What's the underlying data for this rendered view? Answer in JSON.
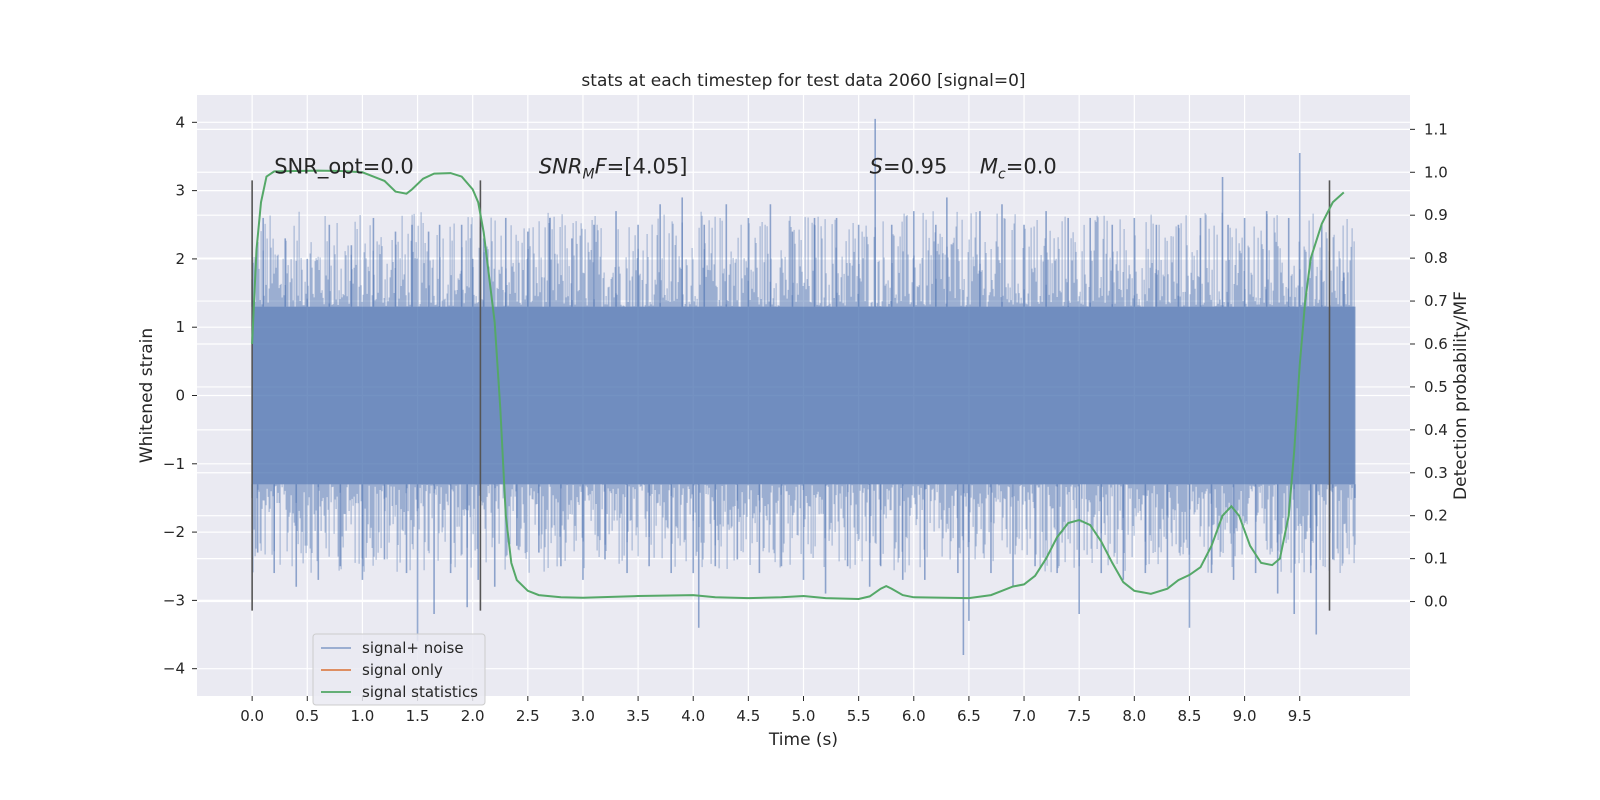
{
  "chart_data": {
    "type": "line",
    "title": "stats at each timestep for test data 2060 [signal=0]",
    "xlabel": "Time (s)",
    "ylabel": "Whitened strain",
    "y2label": "Detection probability/MF",
    "xlim": [
      -0.5,
      10.5
    ],
    "ylim": [
      -4.4,
      4.4
    ],
    "y2lim": [
      -0.22,
      1.18
    ],
    "xticks": [
      0.0,
      0.5,
      1.0,
      1.5,
      2.0,
      2.5,
      3.0,
      3.5,
      4.0,
      4.5,
      5.0,
      5.5,
      6.0,
      6.5,
      7.0,
      7.5,
      8.0,
      8.5,
      9.0,
      9.5
    ],
    "xtick_labels": [
      "0.0",
      "0.5",
      "1.0",
      "1.5",
      "2.0",
      "2.5",
      "3.0",
      "3.5",
      "4.0",
      "4.5",
      "5.0",
      "5.5",
      "6.0",
      "6.5",
      "7.0",
      "7.5",
      "8.0",
      "8.5",
      "9.0",
      "9.5"
    ],
    "yticks": [
      -4,
      -3,
      -2,
      -1,
      0,
      1,
      2,
      3,
      4
    ],
    "ytick_labels": [
      "−4",
      "−3",
      "−2",
      "−1",
      "0",
      "1",
      "2",
      "3",
      "4"
    ],
    "y2ticks": [
      0.0,
      0.1,
      0.2,
      0.3,
      0.4,
      0.5,
      0.6,
      0.7,
      0.8,
      0.9,
      1.0,
      1.1
    ],
    "y2tick_labels": [
      "0.0",
      "0.1",
      "0.2",
      "0.3",
      "0.4",
      "0.5",
      "0.6",
      "0.7",
      "0.8",
      "0.9",
      "1.0",
      "1.1"
    ],
    "grid": true,
    "legend_position": "lower-left",
    "background": "#eaeaf2",
    "series": [
      {
        "name": "signal+ noise",
        "color": "#4c72b0",
        "alpha": 0.5,
        "axis": "left",
        "time_range": [
          0.0,
          10.0
        ],
        "core_band": [
          -1.3,
          1.3
        ],
        "points": [
          [
            0.0,
            1.7
          ],
          [
            0.0,
            -1.5
          ],
          [
            0.05,
            -2.3
          ],
          [
            0.1,
            2.6
          ],
          [
            0.2,
            -2.6
          ],
          [
            0.3,
            2.3
          ],
          [
            0.4,
            -2.8
          ],
          [
            0.5,
            2.0
          ],
          [
            0.6,
            -2.7
          ],
          [
            0.7,
            2.5
          ],
          [
            0.8,
            -2.5
          ],
          [
            0.9,
            2.2
          ],
          [
            1.0,
            -2.7
          ],
          [
            1.1,
            2.6
          ],
          [
            1.2,
            -2.4
          ],
          [
            1.3,
            2.4
          ],
          [
            1.4,
            -2.6
          ],
          [
            1.45,
            2.5
          ],
          [
            1.5,
            -3.6
          ],
          [
            1.6,
            2.4
          ],
          [
            1.65,
            -3.2
          ],
          [
            1.7,
            2.5
          ],
          [
            1.8,
            -2.6
          ],
          [
            1.9,
            2.5
          ],
          [
            1.95,
            -3.1
          ],
          [
            2.0,
            2.0
          ],
          [
            2.05,
            -2.7
          ],
          [
            2.1,
            2.3
          ],
          [
            2.2,
            -2.8
          ],
          [
            2.3,
            2.6
          ],
          [
            2.4,
            -2.2
          ],
          [
            2.5,
            2.4
          ],
          [
            2.6,
            -2.3
          ],
          [
            2.7,
            2.6
          ],
          [
            2.8,
            -2.5
          ],
          [
            2.9,
            2.3
          ],
          [
            3.0,
            -2.7
          ],
          [
            3.1,
            2.5
          ],
          [
            3.2,
            -2.4
          ],
          [
            3.3,
            2.7
          ],
          [
            3.4,
            -2.6
          ],
          [
            3.5,
            2.5
          ],
          [
            3.6,
            -2.5
          ],
          [
            3.7,
            2.8
          ],
          [
            3.8,
            -2.6
          ],
          [
            3.9,
            2.9
          ],
          [
            4.0,
            -2.6
          ],
          [
            4.05,
            -3.4
          ],
          [
            4.1,
            2.5
          ],
          [
            4.2,
            -2.5
          ],
          [
            4.3,
            2.8
          ],
          [
            4.4,
            -2.4
          ],
          [
            4.5,
            2.6
          ],
          [
            4.6,
            -2.6
          ],
          [
            4.7,
            2.8
          ],
          [
            4.8,
            -2.5
          ],
          [
            4.9,
            2.4
          ],
          [
            5.0,
            -2.7
          ],
          [
            5.1,
            2.6
          ],
          [
            5.2,
            -2.9
          ],
          [
            5.3,
            2.6
          ],
          [
            5.4,
            -2.5
          ],
          [
            5.5,
            2.5
          ],
          [
            5.6,
            -2.8
          ],
          [
            5.65,
            4.05
          ],
          [
            5.7,
            -2.5
          ],
          [
            5.8,
            2.5
          ],
          [
            5.9,
            -2.7
          ],
          [
            6.0,
            2.7
          ],
          [
            6.1,
            -2.7
          ],
          [
            6.2,
            2.5
          ],
          [
            6.3,
            2.9
          ],
          [
            6.4,
            -2.6
          ],
          [
            6.45,
            -3.8
          ],
          [
            6.5,
            -3.3
          ],
          [
            6.6,
            2.7
          ],
          [
            6.7,
            -2.6
          ],
          [
            6.8,
            2.8
          ],
          [
            6.9,
            -2.8
          ],
          [
            7.0,
            2.5
          ],
          [
            7.1,
            -2.5
          ],
          [
            7.2,
            2.7
          ],
          [
            7.3,
            -2.6
          ],
          [
            7.4,
            2.6
          ],
          [
            7.5,
            -3.2
          ],
          [
            7.6,
            2.6
          ],
          [
            7.7,
            -2.6
          ],
          [
            7.8,
            2.5
          ],
          [
            7.9,
            -2.7
          ],
          [
            8.0,
            2.6
          ],
          [
            8.1,
            -2.6
          ],
          [
            8.2,
            2.5
          ],
          [
            8.3,
            -2.8
          ],
          [
            8.4,
            2.5
          ],
          [
            8.5,
            -3.4
          ],
          [
            8.6,
            2.6
          ],
          [
            8.7,
            -2.6
          ],
          [
            8.8,
            3.2
          ],
          [
            8.85,
            2.5
          ],
          [
            8.9,
            -2.7
          ],
          [
            9.0,
            2.6
          ],
          [
            9.1,
            -2.6
          ],
          [
            9.2,
            2.7
          ],
          [
            9.3,
            -2.9
          ],
          [
            9.4,
            2.6
          ],
          [
            9.45,
            -3.2
          ],
          [
            9.5,
            3.55
          ],
          [
            9.6,
            -2.6
          ],
          [
            9.65,
            -3.5
          ],
          [
            9.7,
            2.5
          ],
          [
            9.8,
            -2.4
          ],
          [
            9.9,
            1.8
          ],
          [
            10.0,
            -1.5
          ]
        ]
      },
      {
        "name": "signal only",
        "color": "#dd8452",
        "axis": "left",
        "points": []
      },
      {
        "name": "signal statistics",
        "color": "#55a868",
        "axis": "right",
        "points": [
          [
            0.0,
            0.6
          ],
          [
            0.04,
            0.82
          ],
          [
            0.08,
            0.93
          ],
          [
            0.13,
            0.99
          ],
          [
            0.2,
            1.002
          ],
          [
            0.4,
            1.003
          ],
          [
            0.6,
            1.004
          ],
          [
            0.8,
            1.003
          ],
          [
            1.0,
            1.0
          ],
          [
            1.1,
            0.99
          ],
          [
            1.2,
            0.98
          ],
          [
            1.3,
            0.955
          ],
          [
            1.4,
            0.95
          ],
          [
            1.45,
            0.96
          ],
          [
            1.55,
            0.985
          ],
          [
            1.65,
            0.997
          ],
          [
            1.8,
            0.998
          ],
          [
            1.9,
            0.99
          ],
          [
            2.0,
            0.96
          ],
          [
            2.05,
            0.93
          ],
          [
            2.1,
            0.86
          ],
          [
            2.2,
            0.65
          ],
          [
            2.25,
            0.45
          ],
          [
            2.3,
            0.2
          ],
          [
            2.35,
            0.09
          ],
          [
            2.4,
            0.05
          ],
          [
            2.5,
            0.025
          ],
          [
            2.6,
            0.015
          ],
          [
            2.8,
            0.01
          ],
          [
            3.0,
            0.009
          ],
          [
            3.5,
            0.013
          ],
          [
            4.0,
            0.015
          ],
          [
            4.2,
            0.01
          ],
          [
            4.5,
            0.008
          ],
          [
            4.8,
            0.01
          ],
          [
            5.0,
            0.013
          ],
          [
            5.2,
            0.008
          ],
          [
            5.5,
            0.006
          ],
          [
            5.6,
            0.012
          ],
          [
            5.7,
            0.03
          ],
          [
            5.75,
            0.036
          ],
          [
            5.8,
            0.03
          ],
          [
            5.9,
            0.015
          ],
          [
            6.0,
            0.01
          ],
          [
            6.5,
            0.008
          ],
          [
            6.7,
            0.015
          ],
          [
            6.8,
            0.025
          ],
          [
            6.9,
            0.035
          ],
          [
            7.0,
            0.04
          ],
          [
            7.1,
            0.06
          ],
          [
            7.2,
            0.1
          ],
          [
            7.3,
            0.15
          ],
          [
            7.4,
            0.183
          ],
          [
            7.5,
            0.19
          ],
          [
            7.6,
            0.178
          ],
          [
            7.7,
            0.14
          ],
          [
            7.8,
            0.09
          ],
          [
            7.9,
            0.045
          ],
          [
            8.0,
            0.025
          ],
          [
            8.15,
            0.018
          ],
          [
            8.3,
            0.03
          ],
          [
            8.4,
            0.05
          ],
          [
            8.5,
            0.062
          ],
          [
            8.6,
            0.08
          ],
          [
            8.7,
            0.13
          ],
          [
            8.8,
            0.2
          ],
          [
            8.88,
            0.222
          ],
          [
            8.95,
            0.2
          ],
          [
            9.05,
            0.13
          ],
          [
            9.15,
            0.09
          ],
          [
            9.25,
            0.085
          ],
          [
            9.32,
            0.1
          ],
          [
            9.4,
            0.2
          ],
          [
            9.45,
            0.35
          ],
          [
            9.5,
            0.55
          ],
          [
            9.55,
            0.7
          ],
          [
            9.6,
            0.8
          ],
          [
            9.7,
            0.88
          ],
          [
            9.8,
            0.93
          ],
          [
            9.9,
            0.953
          ]
        ]
      }
    ],
    "vertical_markers": [
      0.0,
      2.07,
      9.77
    ],
    "marker_span": [
      -3.15,
      3.15
    ],
    "annotations": [
      {
        "text": "SNR_opt=0.0",
        "x": 0.2,
        "y": 3.25
      },
      {
        "text": "SNR_MF=[4.05]",
        "x": 2.6,
        "y": 3.25
      },
      {
        "text": "S=0.95",
        "x": 5.6,
        "y": 3.25
      },
      {
        "text": "M_c=0.0",
        "x": 6.6,
        "y": 3.25
      }
    ]
  }
}
